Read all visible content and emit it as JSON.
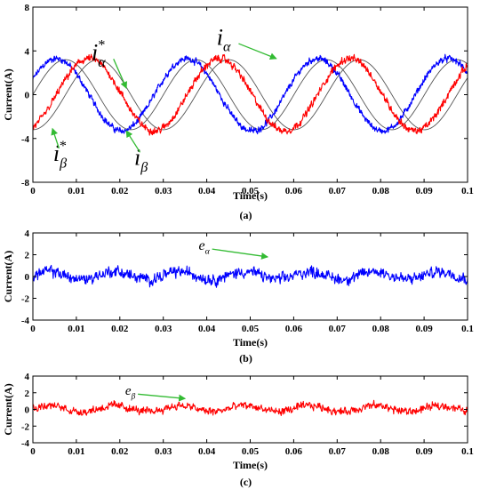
{
  "figure": {
    "captions": [
      "(a)",
      "(b)",
      "(c)"
    ]
  },
  "colors": {
    "alpha": "#0000ff",
    "beta": "#ff0000",
    "reference": "#555555",
    "arrow": "#33bb33",
    "axis": "#000000"
  },
  "chart_data": [
    {
      "type": "line",
      "xlabel": "Time(s)",
      "ylabel": "Current(A)",
      "xlim": [
        0,
        0.1
      ],
      "ylim": [
        -8,
        8
      ],
      "xticks": [
        0,
        0.01,
        0.02,
        0.03,
        0.04,
        0.05,
        0.06,
        0.07,
        0.08,
        0.09,
        0.1
      ],
      "xtick_labels": [
        "0",
        "0.01",
        "0.02",
        "0.03",
        "0.04",
        "0.05",
        "0.06",
        "0.07",
        "0.08",
        "0.09",
        "0.1"
      ],
      "yticks": [
        -8,
        -4,
        0,
        4,
        8
      ],
      "ytick_labels": [
        "-8",
        "-4",
        "0",
        "4",
        "8"
      ],
      "grid": false,
      "caption": "(a)",
      "series": [
        {
          "name": "i_alpha*",
          "kind": "reference",
          "amplitude": 3.2,
          "frequency_hz": 33.3,
          "phase_deg": 0
        },
        {
          "name": "i_beta*",
          "kind": "reference",
          "amplitude": 3.2,
          "frequency_hz": 33.3,
          "phase_deg": -90
        },
        {
          "name": "i_alpha",
          "kind": "measured",
          "amplitude": 3.3,
          "frequency_hz": 33.3,
          "phase_deg": 25,
          "noise_amp": 0.35
        },
        {
          "name": "i_beta",
          "kind": "measured",
          "amplitude": 3.3,
          "frequency_hz": 33.3,
          "phase_deg": -65,
          "noise_amp": 0.4
        }
      ],
      "annotations": [
        {
          "base": "i",
          "sub": "α",
          "sup": "",
          "target": "i_alpha",
          "point": [
            0.056,
            3.3
          ]
        },
        {
          "base": "i",
          "sub": "α",
          "sup": "*",
          "target": "i_alpha*",
          "point": [
            0.0215,
            0.6
          ]
        },
        {
          "base": "i",
          "sub": "β",
          "sup": "*",
          "target": "i_beta*",
          "point": [
            0.0045,
            -3.1
          ]
        },
        {
          "base": "i",
          "sub": "β",
          "sup": "",
          "target": "i_beta",
          "point": [
            0.0215,
            -3.3
          ]
        }
      ]
    },
    {
      "type": "line",
      "xlabel": "Time(s)",
      "ylabel": "Current(A)",
      "xlim": [
        0,
        0.1
      ],
      "ylim": [
        -4,
        4
      ],
      "xticks": [
        0,
        0.01,
        0.02,
        0.03,
        0.04,
        0.05,
        0.06,
        0.07,
        0.08,
        0.09,
        0.1
      ],
      "xtick_labels": [
        "0",
        "0.01",
        "0.02",
        "0.03",
        "0.04",
        "0.05",
        "0.06",
        "0.07",
        "0.08",
        "0.09",
        "0.1"
      ],
      "yticks": [
        -4,
        -2,
        0,
        2,
        4
      ],
      "ytick_labels": [
        "-4",
        "-2",
        "0",
        "2",
        "4"
      ],
      "grid": false,
      "caption": "(b)",
      "series": [
        {
          "name": "e_alpha",
          "kind": "error",
          "center": 0.1,
          "noise_amp": 0.6,
          "range": [
            -1.7,
            1.8
          ]
        }
      ],
      "annotations": [
        {
          "base": "e",
          "sub": "α",
          "sup": "",
          "target": "e_alpha",
          "point": [
            0.054,
            1.8
          ]
        }
      ]
    },
    {
      "type": "line",
      "xlabel": "Time(s)",
      "ylabel": "Current(A)",
      "xlim": [
        0,
        0.1
      ],
      "ylim": [
        -4,
        4
      ],
      "xticks": [
        0,
        0.01,
        0.02,
        0.03,
        0.04,
        0.05,
        0.06,
        0.07,
        0.08,
        0.09,
        0.1
      ],
      "xtick_labels": [
        "0",
        "0.01",
        "0.02",
        "0.03",
        "0.04",
        "0.05",
        "0.06",
        "0.07",
        "0.08",
        "0.09",
        "0.1"
      ],
      "yticks": [
        -4,
        -2,
        0,
        2,
        4
      ],
      "ytick_labels": [
        "-4",
        "-2",
        "0",
        "2",
        "4"
      ],
      "grid": false,
      "caption": "(c)",
      "series": [
        {
          "name": "e_beta",
          "kind": "error",
          "center": 0.1,
          "noise_amp": 0.55,
          "range": [
            -1.5,
            1.9
          ]
        }
      ],
      "annotations": [
        {
          "base": "e",
          "sub": "β",
          "sup": "",
          "target": "e_beta",
          "point": [
            0.035,
            1.3
          ]
        }
      ]
    }
  ]
}
